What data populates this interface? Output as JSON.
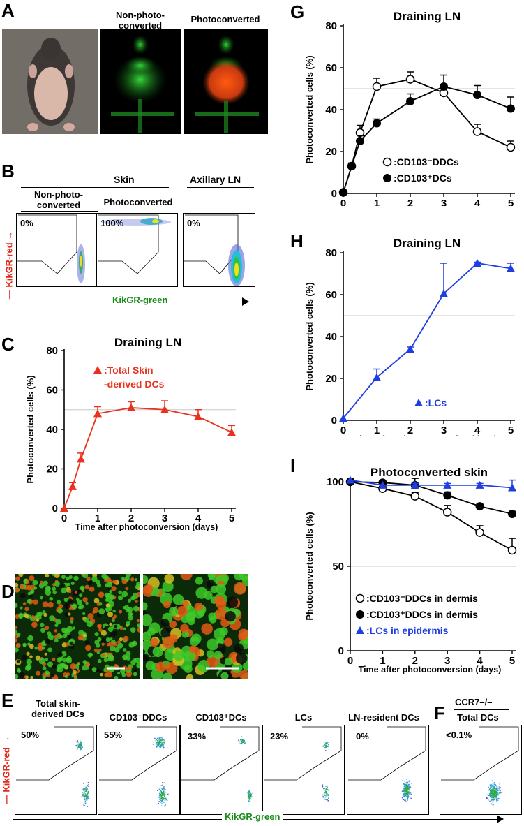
{
  "panels": {
    "A": {
      "letter": "A",
      "cap_nonphoto": "Non-photo-\nconverted",
      "cap_photo": "Photoconverted"
    },
    "B": {
      "letter": "B",
      "skin": "Skin",
      "axillary": "Axillary LN",
      "col1": "Non-photo-\nconverted",
      "col2": "Photoconverted",
      "pcts": [
        "0%",
        "100%",
        "0%"
      ],
      "ylab": "KikGR-red",
      "xlab": "KikGR-green"
    },
    "C": {
      "letter": "C"
    },
    "D": {
      "letter": "D"
    },
    "E": {
      "letter": "E",
      "headers": [
        "Total skin-\nderived DCs",
        "CD103⁻DDCs",
        "CD103⁺DCs",
        "LCs",
        "LN-resident DCs"
      ],
      "pcts": [
        "50%",
        "55%",
        "33%",
        "23%",
        "0%"
      ],
      "ylab": "KikGR-red",
      "xlab": "KikGR-green"
    },
    "F": {
      "letter": "F",
      "genotype": "CCR7–/–",
      "header": "Total DCs",
      "pct": "<0.1%"
    },
    "G": {
      "letter": "G"
    },
    "H": {
      "letter": "H"
    },
    "I": {
      "letter": "I"
    }
  },
  "chart_data": [
    {
      "id": "C",
      "type": "line",
      "title": "Draining LN",
      "xlabel": "Time after photoconversion (days)",
      "ylabel": "Photoconverted cells (%)",
      "xlim": [
        0,
        5
      ],
      "ylim": [
        0,
        80
      ],
      "xticks": [
        0,
        1,
        2,
        3,
        4,
        5
      ],
      "yticks": [
        0,
        20,
        40,
        60,
        80
      ],
      "refline": 50,
      "series": [
        {
          "name": ":Total Skin\n-derived DCs",
          "marker": "triangle",
          "color": "#e8321e",
          "x": [
            0,
            0.25,
            0.5,
            1,
            2,
            3,
            4,
            5
          ],
          "y": [
            0,
            11,
            25,
            48,
            51,
            50,
            46.5,
            38.5
          ],
          "err": [
            0,
            2,
            3,
            3.5,
            3,
            4.5,
            3.5,
            3.5
          ]
        }
      ]
    },
    {
      "id": "G",
      "type": "line",
      "title": "Draining LN",
      "xlabel": "Time after photoconversion (days)",
      "ylabel": "Photoconverted cells (%)",
      "xlim": [
        0,
        5
      ],
      "ylim": [
        0,
        80
      ],
      "xticks": [
        0,
        1,
        2,
        3,
        4,
        5
      ],
      "yticks": [
        0,
        20,
        40,
        60,
        80
      ],
      "refline": 50,
      "series": [
        {
          "name": ":CD103⁻DDCs",
          "marker": "open-circle",
          "color": "#000",
          "x": [
            0,
            0.25,
            0.5,
            1,
            2,
            3,
            4,
            5
          ],
          "y": [
            0.5,
            13,
            29,
            51,
            54.5,
            48,
            29.5,
            22
          ],
          "err": [
            0,
            1.5,
            3.5,
            4,
            3.5,
            3,
            3.5,
            3
          ]
        },
        {
          "name": ":CD103⁺DCs",
          "marker": "filled-circle",
          "color": "#000",
          "x": [
            0,
            0.25,
            0.5,
            1,
            2,
            3,
            4,
            5
          ],
          "y": [
            0.5,
            13,
            25,
            33.5,
            44,
            51,
            47,
            40.5
          ],
          "err": [
            0,
            1.5,
            2.5,
            2,
            3.5,
            5.5,
            4.5,
            5.5
          ]
        }
      ]
    },
    {
      "id": "H",
      "type": "line",
      "title": "Draining LN",
      "xlabel": "Time after photoconversion (days)",
      "ylabel": "Photoconverted cells (%)",
      "xlim": [
        0,
        5
      ],
      "ylim": [
        0,
        80
      ],
      "xticks": [
        0,
        1,
        2,
        3,
        4,
        5
      ],
      "yticks": [
        0,
        20,
        40,
        60,
        80
      ],
      "refline": 50,
      "series": [
        {
          "name": ":LCs",
          "marker": "triangle",
          "color": "#1f3ee0",
          "x": [
            0,
            1,
            2,
            3,
            4,
            5
          ],
          "y": [
            1,
            20.5,
            34,
            60.5,
            75,
            72.5
          ],
          "err": [
            0,
            4,
            1,
            14.5,
            0.5,
            2.5
          ]
        }
      ]
    },
    {
      "id": "I",
      "type": "line",
      "title": "Photoconverted skin",
      "xlabel": "Time after photoconversion (days)",
      "ylabel": "Photoconverted cells (%)",
      "xlim": [
        0,
        5
      ],
      "ylim": [
        0,
        100
      ],
      "xticks": [
        0,
        1,
        2,
        3,
        4,
        5
      ],
      "yticks": [
        0,
        50,
        100
      ],
      "refline": 50,
      "series": [
        {
          "name": ":CD103⁻DDCs in dermis",
          "marker": "open-circle",
          "color": "#000",
          "x": [
            0,
            1,
            2,
            3,
            4,
            5
          ],
          "y": [
            100,
            96,
            91.5,
            82,
            70,
            59.5
          ],
          "err": [
            2,
            1.5,
            2,
            4,
            4,
            7
          ]
        },
        {
          "name": ":CD103⁺DDCs in dermis",
          "marker": "filled-circle",
          "color": "#000",
          "x": [
            0,
            1,
            2,
            3,
            4,
            5
          ],
          "y": [
            100,
            99.5,
            98,
            92,
            85.5,
            81
          ],
          "err": [
            2,
            1,
            4,
            2,
            1.5,
            1.5
          ]
        },
        {
          "name": ":LCs in epidermis",
          "marker": "triangle",
          "color": "#1f3ee0",
          "x": [
            0,
            1,
            2,
            3,
            4,
            5
          ],
          "y": [
            101,
            98,
            98,
            98,
            98,
            96.5
          ],
          "err": [
            0,
            0,
            1,
            1,
            1,
            4.5
          ]
        }
      ]
    }
  ]
}
